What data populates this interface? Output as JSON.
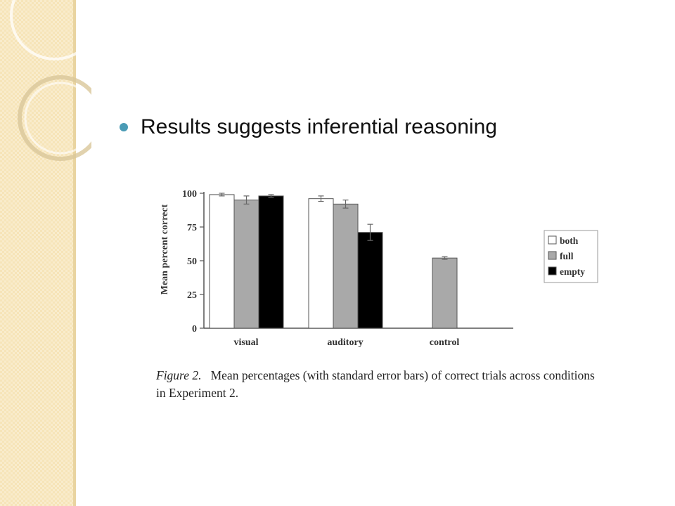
{
  "slide": {
    "bullet": "Results suggests inferential reasoning"
  },
  "colors": {
    "sidebar": "#f6e4b8",
    "bullet": "#4a9bb5"
  },
  "chart_data": {
    "type": "bar",
    "categories": [
      "visual",
      "auditory",
      "control"
    ],
    "ylabel": "Mean percent correct",
    "ylim": [
      0,
      100
    ],
    "yticks": [
      0,
      25,
      50,
      75,
      100
    ],
    "legend_position": "right",
    "series": [
      {
        "name": "both",
        "color": "#ffffff",
        "values": [
          99,
          96,
          null
        ],
        "errors": [
          1,
          2,
          null
        ]
      },
      {
        "name": "full",
        "color": "#a9a9a9",
        "values": [
          95,
          92,
          52
        ],
        "errors": [
          3,
          3,
          1
        ]
      },
      {
        "name": "empty",
        "color": "#000000",
        "values": [
          98,
          71,
          null
        ],
        "errors": [
          1,
          6,
          null
        ]
      }
    ]
  },
  "caption": {
    "figure_label": "Figure 2.",
    "text": "Mean percentages (with standard error bars) of correct trials across conditions in Experiment 2."
  }
}
